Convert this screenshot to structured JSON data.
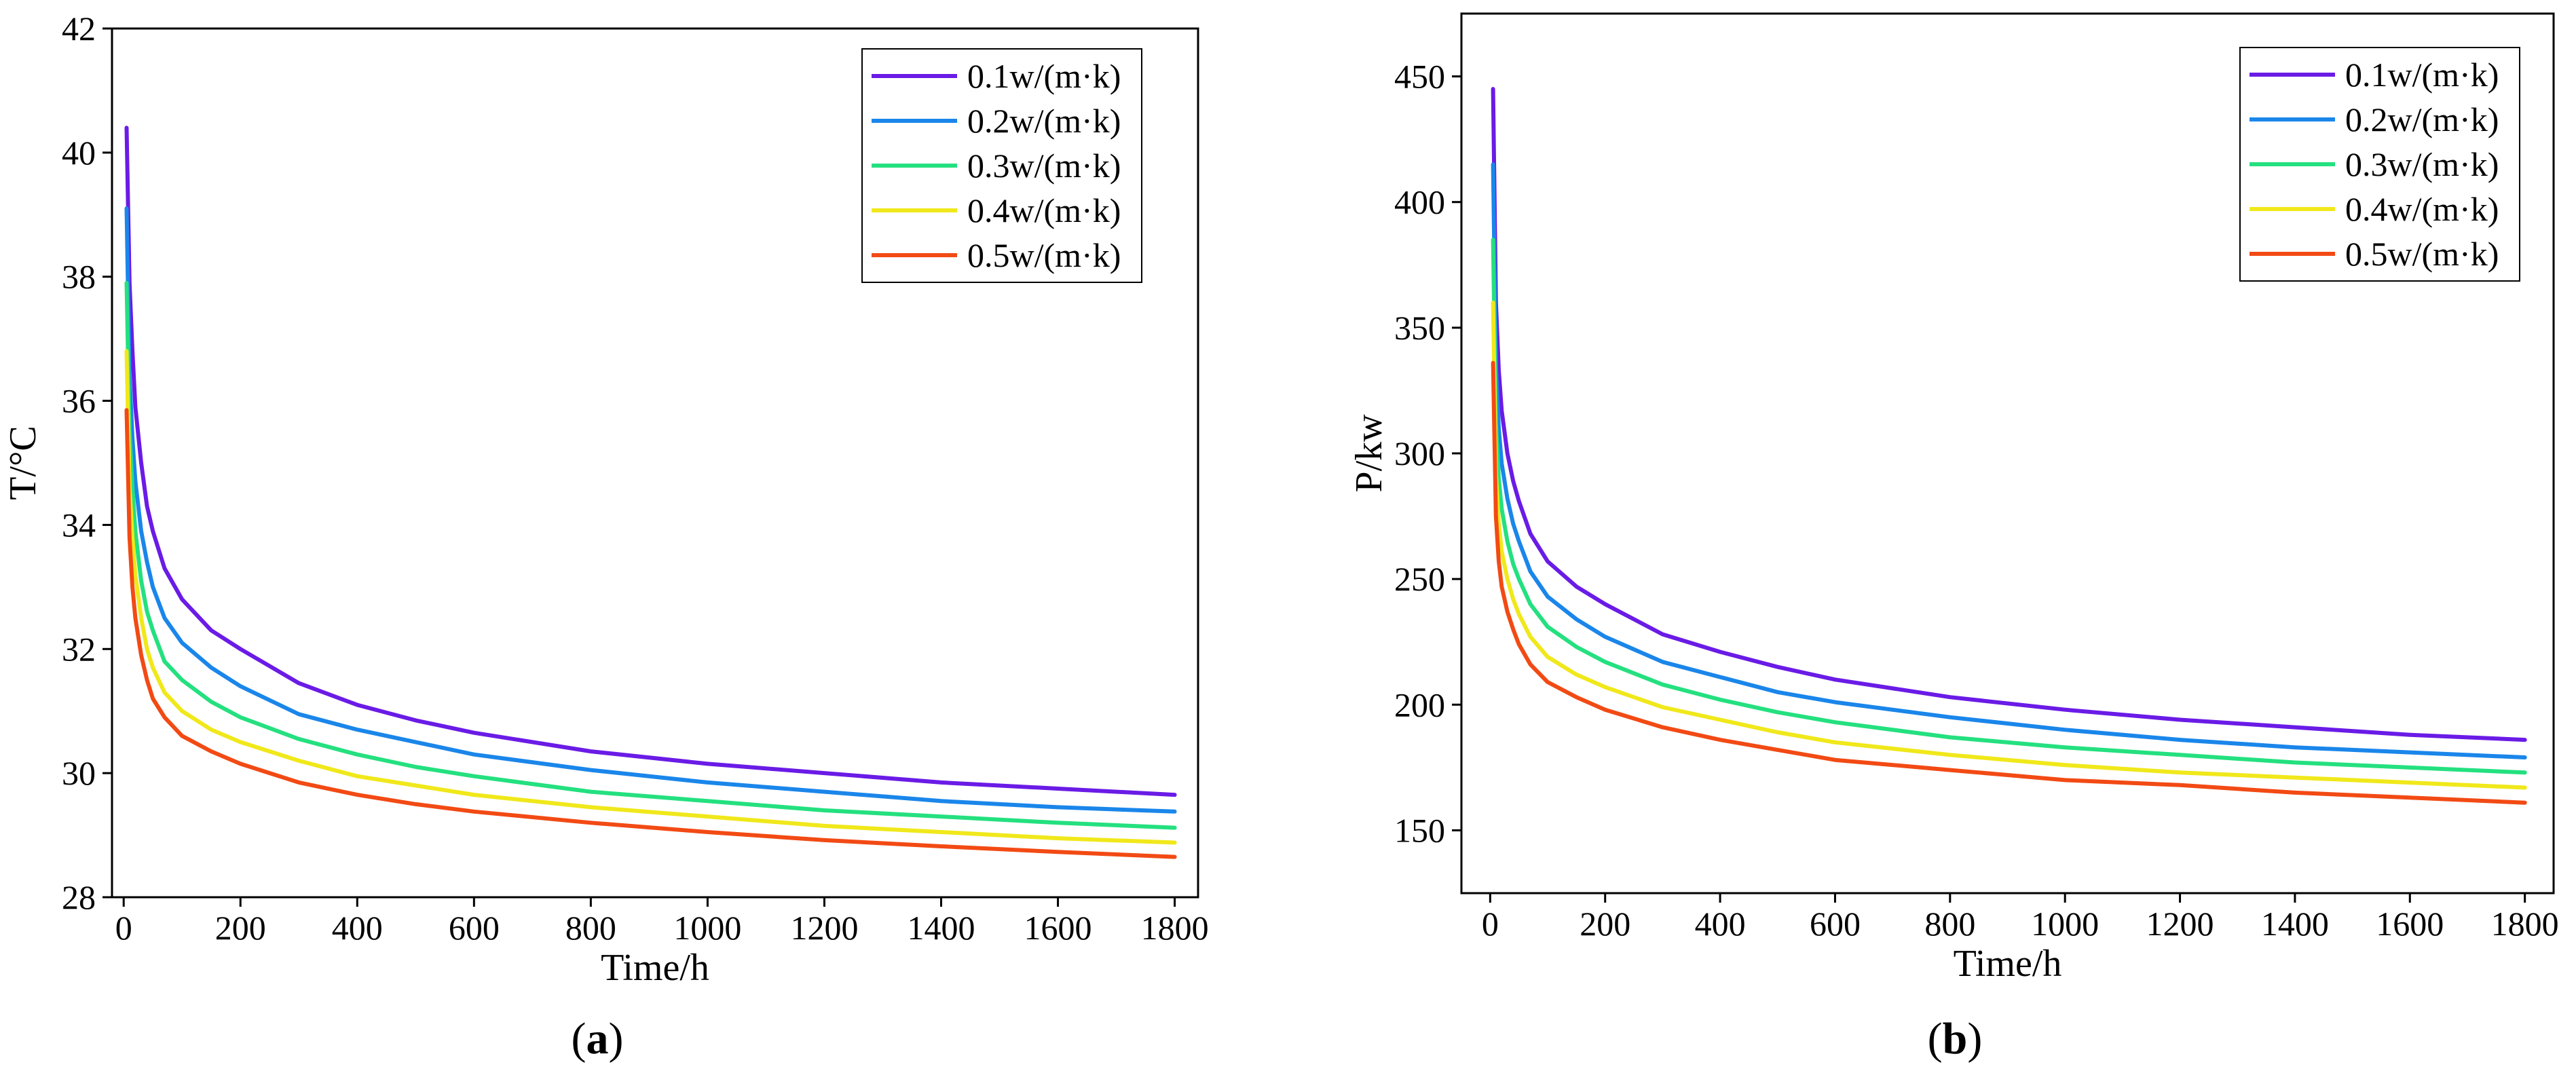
{
  "colors": {
    "0.1": "#6a1be6",
    "0.2": "#1a86ea",
    "0.3": "#24e07f",
    "0.4": "#f0e81a",
    "0.5": "#f24a14"
  },
  "chart_data": [
    {
      "id": "a",
      "type": "line",
      "caption_open": "(",
      "caption_letter": "a",
      "caption_close": ")",
      "xlabel": "Time/h",
      "ylabel": "T/°C",
      "xlim": [
        -20,
        1840
      ],
      "ylim": [
        28,
        42
      ],
      "xticks": [
        0,
        200,
        400,
        600,
        800,
        1000,
        1200,
        1400,
        1600,
        1800
      ],
      "yticks": [
        28,
        30,
        32,
        34,
        36,
        38,
        40,
        42
      ],
      "legend_position": "top-right",
      "x": [
        5,
        10,
        15,
        20,
        30,
        40,
        50,
        70,
        100,
        150,
        200,
        300,
        400,
        500,
        600,
        800,
        1000,
        1200,
        1400,
        1600,
        1800
      ],
      "series": [
        {
          "name": "0.1w/(m·k)",
          "color_key": "0.1",
          "values": [
            40.4,
            37.9,
            36.8,
            35.9,
            35.0,
            34.3,
            33.9,
            33.3,
            32.8,
            32.3,
            32.0,
            31.45,
            31.1,
            30.85,
            30.65,
            30.35,
            30.15,
            30.0,
            29.85,
            29.75,
            29.65
          ]
        },
        {
          "name": "0.2w/(m·k)",
          "color_key": "0.2",
          "values": [
            39.1,
            36.4,
            35.4,
            34.7,
            33.9,
            33.4,
            33.0,
            32.5,
            32.1,
            31.7,
            31.4,
            30.95,
            30.7,
            30.5,
            30.3,
            30.05,
            29.85,
            29.7,
            29.55,
            29.45,
            29.38
          ]
        },
        {
          "name": "0.3w/(m·k)",
          "color_key": "0.3",
          "values": [
            37.9,
            35.5,
            34.6,
            33.9,
            33.1,
            32.6,
            32.3,
            31.8,
            31.5,
            31.15,
            30.9,
            30.55,
            30.3,
            30.1,
            29.95,
            29.7,
            29.55,
            29.4,
            29.3,
            29.2,
            29.12
          ]
        },
        {
          "name": "0.4w/(m·k)",
          "color_key": "0.4",
          "values": [
            36.8,
            34.6,
            33.8,
            33.2,
            32.5,
            32.0,
            31.7,
            31.3,
            31.0,
            30.7,
            30.5,
            30.2,
            29.95,
            29.8,
            29.65,
            29.45,
            29.3,
            29.15,
            29.05,
            28.95,
            28.88
          ]
        },
        {
          "name": "0.5w/(m·k)",
          "color_key": "0.5",
          "values": [
            35.85,
            33.8,
            33.0,
            32.5,
            31.9,
            31.5,
            31.2,
            30.9,
            30.6,
            30.35,
            30.15,
            29.85,
            29.65,
            29.5,
            29.38,
            29.2,
            29.05,
            28.92,
            28.82,
            28.73,
            28.65
          ]
        }
      ]
    },
    {
      "id": "b",
      "type": "line",
      "caption_open": "(",
      "caption_letter": "b",
      "caption_close": ")",
      "xlabel": "Time/h",
      "ylabel": "P/kw",
      "xlim": [
        -50,
        1850
      ],
      "ylim": [
        125,
        475
      ],
      "xticks": [
        0,
        200,
        400,
        600,
        800,
        1000,
        1200,
        1400,
        1600,
        1800
      ],
      "yticks": [
        150,
        200,
        250,
        300,
        350,
        400,
        450
      ],
      "legend_position": "top-right",
      "x": [
        5,
        10,
        15,
        20,
        30,
        40,
        50,
        70,
        100,
        150,
        200,
        300,
        400,
        500,
        600,
        800,
        1000,
        1200,
        1400,
        1600,
        1800
      ],
      "series": [
        {
          "name": "0.1w/(m·k)",
          "color_key": "0.1",
          "values": [
            445,
            360,
            333,
            317,
            300,
            289,
            281,
            268,
            257,
            247,
            240,
            228,
            221,
            215,
            210,
            203,
            198,
            194,
            191,
            188,
            186
          ]
        },
        {
          "name": "0.2w/(m·k)",
          "color_key": "0.2",
          "values": [
            415,
            335,
            310,
            296,
            282,
            272,
            265,
            253,
            243,
            234,
            227,
            217,
            211,
            205,
            201,
            195,
            190,
            186,
            183,
            181,
            179
          ]
        },
        {
          "name": "0.3w/(m·k)",
          "color_key": "0.3",
          "values": [
            385,
            312,
            290,
            278,
            265,
            256,
            250,
            240,
            231,
            223,
            217,
            208,
            202,
            197,
            193,
            187,
            183,
            180,
            177,
            175,
            173
          ]
        },
        {
          "name": "0.4w/(m·k)",
          "color_key": "0.4",
          "values": [
            360,
            292,
            272,
            261,
            250,
            242,
            236,
            227,
            219,
            212,
            207,
            199,
            194,
            189,
            185,
            180,
            176,
            173,
            171,
            169,
            167
          ]
        },
        {
          "name": "0.5w/(m·k)",
          "color_key": "0.5",
          "values": [
            336,
            275,
            257,
            247,
            237,
            230,
            224,
            216,
            209,
            203,
            198,
            191,
            186,
            182,
            178,
            174,
            170,
            168,
            165,
            163,
            161
          ]
        }
      ]
    }
  ]
}
